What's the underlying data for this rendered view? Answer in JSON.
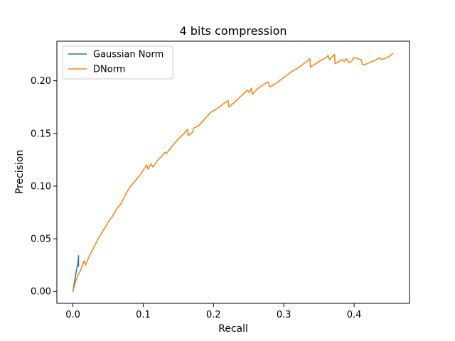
{
  "chart_data": {
    "type": "line",
    "title": "4 bits compression",
    "xlabel": "Recall",
    "ylabel": "Precision",
    "xlim": [
      -0.0228,
      0.4788
    ],
    "ylim": [
      -0.0113,
      0.2375
    ],
    "xticks": [
      0.0,
      0.1,
      0.2,
      0.3,
      0.4
    ],
    "xtick_labels": [
      "0.0",
      "0.1",
      "0.2",
      "0.3",
      "0.4"
    ],
    "yticks": [
      0.0,
      0.05,
      0.1,
      0.15,
      0.2
    ],
    "ytick_labels": [
      "0.00",
      "0.05",
      "0.10",
      "0.15",
      "0.20"
    ],
    "grid": false,
    "legend_position": "upper left",
    "series": [
      {
        "name": "Gaussian Norm",
        "color": "#1f77b4",
        "x": [
          0.0,
          0.003,
          0.005,
          0.007,
          0.008,
          0.008
        ],
        "y": [
          0.0,
          0.012,
          0.02,
          0.026,
          0.034,
          0.024
        ]
      },
      {
        "name": "DNorm",
        "color": "#ff7f0e",
        "x": [
          0.0,
          0.004,
          0.008,
          0.011,
          0.013,
          0.016,
          0.018,
          0.021,
          0.025,
          0.03,
          0.036,
          0.043,
          0.049,
          0.05,
          0.056,
          0.063,
          0.068,
          0.075,
          0.081,
          0.09,
          0.098,
          0.105,
          0.107,
          0.111,
          0.114,
          0.12,
          0.126,
          0.131,
          0.133,
          0.138,
          0.145,
          0.152,
          0.158,
          0.163,
          0.164,
          0.17,
          0.172,
          0.18,
          0.188,
          0.196,
          0.204,
          0.21,
          0.216,
          0.221,
          0.222,
          0.229,
          0.237,
          0.245,
          0.248,
          0.251,
          0.254,
          0.255,
          0.262,
          0.27,
          0.278,
          0.28,
          0.288,
          0.296,
          0.304,
          0.312,
          0.32,
          0.328,
          0.334,
          0.337,
          0.338,
          0.345,
          0.352,
          0.36,
          0.363,
          0.365,
          0.372,
          0.373,
          0.38,
          0.383,
          0.386,
          0.389,
          0.393,
          0.397,
          0.4,
          0.41,
          0.412,
          0.418,
          0.425,
          0.432,
          0.436,
          0.439,
          0.447,
          0.452,
          0.455
        ],
        "y": [
          0.0,
          0.01,
          0.017,
          0.02,
          0.024,
          0.029,
          0.025,
          0.03,
          0.036,
          0.042,
          0.05,
          0.058,
          0.064,
          0.066,
          0.071,
          0.079,
          0.083,
          0.092,
          0.099,
          0.106,
          0.113,
          0.12,
          0.116,
          0.121,
          0.118,
          0.124,
          0.128,
          0.132,
          0.131,
          0.135,
          0.141,
          0.146,
          0.15,
          0.154,
          0.148,
          0.151,
          0.155,
          0.158,
          0.164,
          0.17,
          0.173,
          0.176,
          0.179,
          0.181,
          0.175,
          0.179,
          0.184,
          0.189,
          0.191,
          0.189,
          0.193,
          0.187,
          0.192,
          0.196,
          0.199,
          0.194,
          0.197,
          0.201,
          0.205,
          0.209,
          0.212,
          0.216,
          0.219,
          0.221,
          0.213,
          0.216,
          0.219,
          0.222,
          0.224,
          0.22,
          0.225,
          0.216,
          0.219,
          0.22,
          0.218,
          0.221,
          0.217,
          0.219,
          0.222,
          0.22,
          0.215,
          0.216,
          0.218,
          0.22,
          0.222,
          0.22,
          0.222,
          0.224,
          0.226
        ]
      }
    ]
  }
}
